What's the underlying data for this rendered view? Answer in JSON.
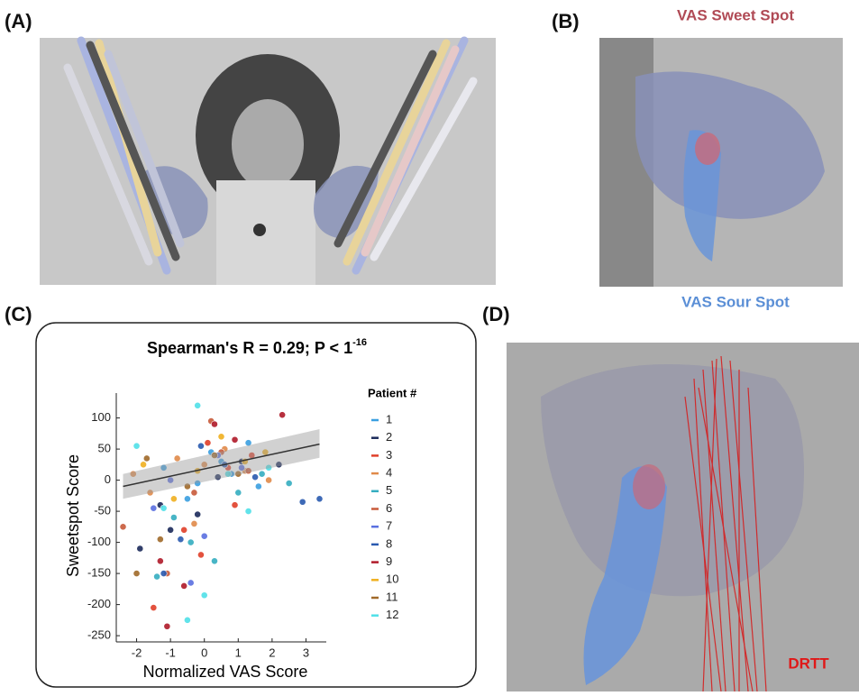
{
  "panels": {
    "a_label": "(A)",
    "b_label": "(B)",
    "c_label": "(C)",
    "d_label": "(D)",
    "sweet_spot": "VAS Sweet Spot",
    "sour_spot": "VAS Sour Spot",
    "drtt": "DRTT"
  },
  "chart_data": {
    "type": "scatter",
    "title": "Spearman's R = 0.29; P < 1",
    "title_superscript": "-16",
    "x_label": "Normalized VAS Score",
    "y_label": "Sweetspot Score",
    "legend_title": "Patient #",
    "xlim": [
      -2.6,
      3.6
    ],
    "ylim": [
      -260,
      140
    ],
    "xticks": [
      -2,
      -1,
      0,
      1,
      2,
      3
    ],
    "yticks": [
      -250,
      -200,
      -150,
      -100,
      -50,
      0,
      50,
      100
    ],
    "fit": {
      "x": [
        -2.4,
        3.4
      ],
      "y": [
        -10,
        58
      ],
      "lower": [
        -30,
        36
      ],
      "upper": [
        10,
        82
      ]
    },
    "series": [
      {
        "name": "1",
        "color": "#3a9fe0",
        "x": [
          -1.2,
          -0.5,
          0.2,
          0.8,
          1.3,
          -0.2,
          0.5,
          1.6
        ],
        "values": [
          20,
          -30,
          45,
          10,
          60,
          -5,
          30,
          -10
        ]
      },
      {
        "name": "2",
        "color": "#1b2a5a",
        "x": [
          -1.3,
          -1.9,
          -0.2,
          0.4,
          1.1,
          -1.0,
          2.2
        ],
        "values": [
          -40,
          -110,
          -55,
          5,
          30,
          -80,
          25
        ]
      },
      {
        "name": "3",
        "color": "#e0402a",
        "x": [
          -1.5,
          -0.6,
          0.1,
          0.7,
          1.4,
          -0.1,
          0.9
        ],
        "values": [
          -205,
          -80,
          60,
          20,
          40,
          -120,
          -40
        ]
      },
      {
        "name": "4",
        "color": "#e08a4a",
        "x": [
          -2.1,
          -1.6,
          -0.8,
          0.0,
          0.6,
          1.2,
          1.9,
          -0.3
        ],
        "values": [
          10,
          -20,
          35,
          25,
          50,
          15,
          0,
          -70
        ]
      },
      {
        "name": "5",
        "color": "#35adc0",
        "x": [
          -1.4,
          -0.9,
          0.3,
          1.0,
          1.7,
          -0.4,
          2.5
        ],
        "values": [
          -155,
          -60,
          -130,
          -20,
          10,
          -100,
          -5
        ]
      },
      {
        "name": "6",
        "color": "#c85a3a",
        "x": [
          -2.4,
          -1.1,
          -0.3,
          0.5,
          1.3,
          0.2
        ],
        "values": [
          -75,
          -150,
          -20,
          45,
          15,
          95
        ]
      },
      {
        "name": "7",
        "color": "#5a70e0",
        "x": [
          -1.0,
          -0.4,
          0.4,
          1.1,
          0.0,
          -1.5
        ],
        "values": [
          0,
          -165,
          40,
          20,
          -90,
          -45
        ]
      },
      {
        "name": "8",
        "color": "#2a5ab0",
        "x": [
          -1.2,
          -0.7,
          0.6,
          1.5,
          2.9,
          3.4,
          -0.1
        ],
        "values": [
          -150,
          -95,
          25,
          5,
          -35,
          -30,
          55
        ]
      },
      {
        "name": "9",
        "color": "#b01a2a",
        "x": [
          -1.1,
          -0.6,
          0.3,
          0.9,
          2.3,
          -1.3
        ],
        "values": [
          -235,
          -170,
          90,
          65,
          105,
          -130
        ]
      },
      {
        "name": "10",
        "color": "#f0b020",
        "x": [
          -1.8,
          -0.9,
          -0.2,
          0.5,
          1.2,
          1.8
        ],
        "values": [
          25,
          -30,
          15,
          70,
          30,
          45
        ]
      },
      {
        "name": "11",
        "color": "#a06a2a",
        "x": [
          -2.0,
          -1.3,
          -0.5,
          0.3,
          1.0,
          -1.7
        ],
        "values": [
          -150,
          -95,
          -10,
          40,
          10,
          35
        ]
      },
      {
        "name": "12",
        "color": "#50e0e8",
        "x": [
          -2.0,
          -1.2,
          -0.5,
          0.0,
          0.7,
          1.3,
          1.9,
          -0.2
        ],
        "values": [
          55,
          -45,
          -225,
          -185,
          10,
          -50,
          20,
          120
        ]
      }
    ]
  }
}
